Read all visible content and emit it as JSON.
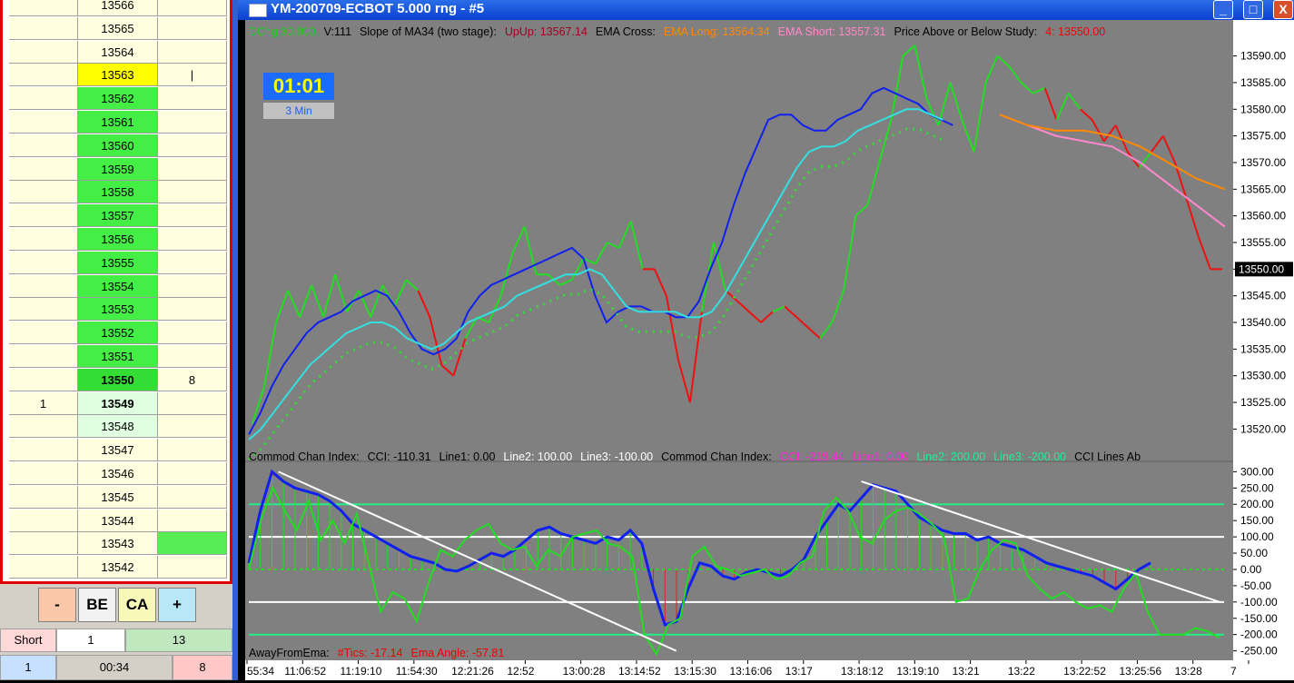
{
  "window": {
    "title": "YM-200709-ECBOT  5.000 rng - #5",
    "minimize_label": "_",
    "maximize_label": "□",
    "close_label": "X"
  },
  "dom": {
    "rows": [
      {
        "left": "",
        "price": "13566",
        "right": "",
        "price_bg": "#ffffe0"
      },
      {
        "left": "",
        "price": "13565",
        "right": "",
        "price_bg": "#ffffe0"
      },
      {
        "left": "",
        "price": "13564",
        "right": "",
        "price_bg": "#ffffe0"
      },
      {
        "left": "",
        "price": "13563",
        "right": "|",
        "price_bg": "#ffff00"
      },
      {
        "left": "",
        "price": "13562",
        "right": "",
        "price_bg": "#44ee44"
      },
      {
        "left": "",
        "price": "13561",
        "right": "",
        "price_bg": "#44ee44"
      },
      {
        "left": "",
        "price": "13560",
        "right": "",
        "price_bg": "#44ee44"
      },
      {
        "left": "",
        "price": "13559",
        "right": "",
        "price_bg": "#44ee44"
      },
      {
        "left": "",
        "price": "13558",
        "right": "",
        "price_bg": "#44ee44"
      },
      {
        "left": "",
        "price": "13557",
        "right": "",
        "price_bg": "#44ee44"
      },
      {
        "left": "",
        "price": "13556",
        "right": "",
        "price_bg": "#44ee44"
      },
      {
        "left": "",
        "price": "13555",
        "right": "",
        "price_bg": "#44ee44"
      },
      {
        "left": "",
        "price": "13554",
        "right": "",
        "price_bg": "#44ee44"
      },
      {
        "left": "",
        "price": "13553",
        "right": "",
        "price_bg": "#44ee44"
      },
      {
        "left": "",
        "price": "13552",
        "right": "",
        "price_bg": "#44ee44"
      },
      {
        "left": "",
        "price": "13551",
        "right": "",
        "price_bg": "#44ee44"
      },
      {
        "left": "",
        "price": "13550",
        "right": "8",
        "price_bg": "#33dd33",
        "bold": true
      },
      {
        "left": "1",
        "price": "13549",
        "right": "",
        "price_bg": "#dfffe0",
        "bold": true
      },
      {
        "left": "",
        "price": "13548",
        "right": "",
        "price_bg": "#dfffe0"
      },
      {
        "left": "",
        "price": "13547",
        "right": "",
        "price_bg": "#ffffe0"
      },
      {
        "left": "",
        "price": "13546",
        "right": "",
        "price_bg": "#ffffe0"
      },
      {
        "left": "",
        "price": "13545",
        "right": "",
        "price_bg": "#ffffe0"
      },
      {
        "left": "",
        "price": "13544",
        "right": "",
        "price_bg": "#ffffe0"
      },
      {
        "left": "",
        "price": "13543",
        "right": "",
        "price_bg": "#ffffe0",
        "right_bg": "#55ee55"
      },
      {
        "left": "",
        "price": "13542",
        "right": "",
        "price_bg": "#ffffe0"
      }
    ],
    "controls": {
      "minus": "-",
      "be": "BE",
      "ca": "CA",
      "plus": "+"
    },
    "position": {
      "side": "Short",
      "qty": "1",
      "value": "13"
    },
    "footer": {
      "left": "1",
      "time": "00:34",
      "right": "8"
    }
  },
  "header": {
    "items": [
      {
        "text": "DChg:30.000",
        "color": "#22cc22"
      },
      {
        "text": "V:111",
        "color": "#000000"
      },
      {
        "text": "Slope of MA34 (two stage):",
        "color": "#000000"
      },
      {
        "text": "UpUp: 13567.14",
        "color": "#a00020"
      },
      {
        "text": "EMA Cross:",
        "color": "#000000"
      },
      {
        "text": "EMA Long: 13564.34",
        "color": "#ff8800"
      },
      {
        "text": "EMA Short: 13557.31",
        "color": "#ff88cc"
      },
      {
        "text": "Price Above or Below Study:",
        "color": "#000000"
      },
      {
        "text": "4: 13550.00",
        "color": "#ee0000"
      }
    ],
    "cci_items": [
      {
        "text": "Commod Chan Index:",
        "color": "#000000"
      },
      {
        "text": "CCI: -110.31",
        "color": "#000000"
      },
      {
        "text": "Line1: 0.00",
        "color": "#000000"
      },
      {
        "text": "Line2: 100.00",
        "color": "#ffffff"
      },
      {
        "text": "Line3: -100.00",
        "color": "#ffffff"
      },
      {
        "text": "Commod Chan Index:",
        "color": "#000000"
      },
      {
        "text": "CCI: -219.44",
        "color": "#ff22dd"
      },
      {
        "text": "Line1: 0.00",
        "color": "#ff22dd"
      },
      {
        "text": "Line2: 200.00",
        "color": "#22ee99"
      },
      {
        "text": "Line3: -200.00",
        "color": "#22ee99"
      },
      {
        "text": "CCI Lines Ab",
        "color": "#000000"
      }
    ],
    "away_items": [
      {
        "text": "AwayFromEma:",
        "color": "#000000"
      },
      {
        "text": "#Tics: -17.14",
        "color": "#ee0000"
      },
      {
        "text": "Ema Angle: -57.81",
        "color": "#ee0000"
      }
    ]
  },
  "timer": {
    "value": "01:01",
    "period": "3 Min"
  },
  "chart_data": [
    {
      "type": "line",
      "ylim": [
        13517,
        13593
      ],
      "yticks": [
        "13590.00",
        "13585.00",
        "13580.00",
        "13575.00",
        "13570.00",
        "13565.00",
        "13560.00",
        "13555.00",
        "13550.00",
        "13545.00",
        "13540.00",
        "13535.00",
        "13530.00",
        "13525.00",
        "13520.00"
      ],
      "last_price": "13550.00",
      "xticks": [
        "55:34",
        "11:06:52",
        "11:19:10",
        "11:54:30",
        "12:21:26",
        "12:52",
        "13:00:28",
        "13:14:52",
        "13:15:30",
        "13:16:06",
        "13:17",
        "13:18:12",
        "13:19:10",
        "13:21",
        "13:22",
        "13:22:52",
        "13:25:56",
        "13:28",
        "7"
      ],
      "series": [
        {
          "name": "price",
          "color": "#22dd22",
          "y": [
            13521,
            13528,
            13540,
            13546,
            13541,
            13547,
            13541,
            13549,
            13542,
            13546,
            13541,
            13547,
            13543,
            13548,
            13546,
            13541,
            13532,
            13530,
            13537,
            13541,
            13540,
            13545,
            13553,
            13558,
            13549,
            13549,
            13547,
            13548,
            13552,
            13551,
            13555,
            13554,
            13559,
            13550,
            13550,
            13545,
            13533,
            13525,
            13542,
            13555,
            13546,
            13544,
            13542,
            13540,
            13542,
            13543,
            13541,
            13539,
            13537,
            13540,
            13546,
            13560,
            13562,
            13570,
            13578,
            13590,
            13592,
            13582,
            13577,
            13585,
            13578,
            13572,
            13585,
            13590,
            13588,
            13585,
            13583,
            13584,
            13578,
            13583,
            13580,
            13578,
            13574,
            13577,
            13572,
            13569,
            13572,
            13575,
            13570,
            13563,
            13556,
            13550,
            13550
          ],
          "colors": [
            "g",
            "g",
            "g",
            "g",
            "g",
            "g",
            "g",
            "g",
            "g",
            "g",
            "g",
            "g",
            "g",
            "g",
            "g",
            "r",
            "r",
            "r",
            "r",
            "g",
            "g",
            "g",
            "g",
            "g",
            "g",
            "g",
            "g",
            "g",
            "g",
            "g",
            "g",
            "g",
            "g",
            "g",
            "r",
            "r",
            "r",
            "r",
            "r",
            "g",
            "g",
            "r",
            "r",
            "r",
            "r",
            "g",
            "r",
            "r",
            "r",
            "g",
            "g",
            "g",
            "g",
            "g",
            "g",
            "g",
            "g",
            "g",
            "g",
            "g",
            "g",
            "g",
            "g",
            "g",
            "g",
            "g",
            "g",
            "g",
            "r",
            "g",
            "g",
            "r",
            "r",
            "r",
            "r",
            "r",
            "g",
            "r",
            "r",
            "r",
            "r",
            "r",
            "r"
          ]
        },
        {
          "name": "ema-fast",
          "color": "#1020ee",
          "y": [
            13519,
            13523,
            13528,
            13532,
            13535,
            13538,
            13540,
            13541,
            13542,
            13544,
            13545,
            13546,
            13545,
            13542,
            13538,
            13535,
            13534,
            13535,
            13537,
            13542,
            13545,
            13547,
            13548,
            13549,
            13550,
            13551,
            13552,
            13553,
            13554,
            13552,
            13545,
            13540,
            13542,
            13543,
            13543,
            13542,
            13542,
            13541,
            13541,
            13544,
            13550,
            13555,
            13562,
            13568,
            13573,
            13578,
            13579,
            13579,
            13577,
            13576,
            13576,
            13578,
            13579,
            13580,
            13583,
            13584,
            13583,
            13582,
            13581,
            13579,
            13578,
            13577
          ],
          "x0": 0.0,
          "x1": 0.72
        },
        {
          "name": "ema-slow",
          "color": "#33e0e0",
          "y": [
            13518,
            13520,
            13523,
            13526,
            13529,
            13532,
            13534,
            13536,
            13538,
            13539,
            13540,
            13540,
            13539,
            13537,
            13536,
            13535,
            13536,
            13538,
            13540,
            13541,
            13542,
            13543,
            13545,
            13546,
            13547,
            13548,
            13549,
            13549,
            13550,
            13549,
            13546,
            13543,
            13542,
            13542,
            13542,
            13542,
            13541,
            13541,
            13542,
            13545,
            13549,
            13553,
            13557,
            13561,
            13565,
            13569,
            13572,
            13573,
            13573,
            13574,
            13576,
            13577,
            13578,
            13579,
            13580,
            13580,
            13579,
            13578
          ],
          "x0": 0.0,
          "x1": 0.71
        },
        {
          "name": "ema-short",
          "color": "#ff88cc",
          "y": [
            13579,
            13577,
            13575,
            13574,
            13573,
            13570,
            13566,
            13562,
            13558
          ],
          "x0": 0.76,
          "x1": 0.995
        },
        {
          "name": "ema-long",
          "color": "#ff8800",
          "y": [
            13579,
            13577,
            13576,
            13576,
            13575,
            13573,
            13570,
            13567,
            13565
          ],
          "x0": 0.76,
          "x1": 0.995
        }
      ]
    },
    {
      "type": "line",
      "ylim": [
        -265,
        315
      ],
      "yticks": [
        "300.00",
        "250.00",
        "200.00",
        "150.00",
        "100.00",
        "50.00",
        "0.00",
        "-50.00",
        "-100.00",
        "-150.00",
        "-200.00",
        "-250.00"
      ],
      "reference_lines": [
        {
          "value": 200,
          "color": "#22ee88"
        },
        {
          "value": 100,
          "color": "#ffffff"
        },
        {
          "value": -100,
          "color": "#ffffff"
        },
        {
          "value": -200,
          "color": "#22ee88"
        }
      ],
      "series": [
        {
          "name": "cci-long",
          "color": "#1020ee",
          "y": [
            20,
            180,
            300,
            270,
            250,
            240,
            230,
            210,
            180,
            140,
            120,
            100,
            80,
            60,
            40,
            30,
            20,
            0,
            -5,
            10,
            30,
            50,
            40,
            60,
            90,
            120,
            130,
            110,
            100,
            90,
            80,
            100,
            90,
            120,
            80,
            -60,
            -170,
            -160,
            -60,
            20,
            10,
            -20,
            -30,
            -10,
            0,
            -10,
            -20,
            0,
            30,
            100,
            150,
            200,
            180,
            220,
            260,
            250,
            240,
            200,
            160,
            140,
            120,
            110,
            110,
            90,
            100,
            80,
            70,
            60,
            40,
            20,
            10,
            0,
            -10,
            -20,
            -40,
            -60,
            -30,
            0,
            20
          ],
          "x0": 0.0,
          "x1": 0.92
        },
        {
          "name": "cci-short",
          "color": "#22dd22",
          "y": [
            0,
            150,
            250,
            180,
            120,
            210,
            90,
            150,
            80,
            170,
            20,
            -130,
            -70,
            -90,
            -160,
            -40,
            60,
            40,
            90,
            120,
            140,
            80,
            60,
            70,
            10,
            60,
            40,
            100,
            110,
            120,
            80,
            70,
            40,
            -200,
            -260,
            -170,
            -150,
            40,
            70,
            10,
            0,
            -20,
            -10,
            0,
            -30,
            -20,
            20,
            40,
            180,
            220,
            180,
            100,
            80,
            150,
            180,
            190,
            170,
            140,
            100,
            -100,
            -90,
            0,
            60,
            90,
            80,
            -20,
            -60,
            -90,
            -70,
            -100,
            -120,
            -110,
            -130,
            -60,
            -10,
            -130,
            -200,
            -200,
            -200,
            -180,
            -190,
            -210
          ],
          "x0": 0.0,
          "x1": 0.99
        },
        {
          "name": "trendline-1",
          "color": "#ffffff",
          "y": [
            300,
            -250
          ],
          "x0": 0.03,
          "x1": 0.44
        },
        {
          "name": "trendline-2",
          "color": "#ffffff",
          "y": [
            270,
            -100
          ],
          "x0": 0.62,
          "x1": 0.99
        }
      ]
    }
  ]
}
